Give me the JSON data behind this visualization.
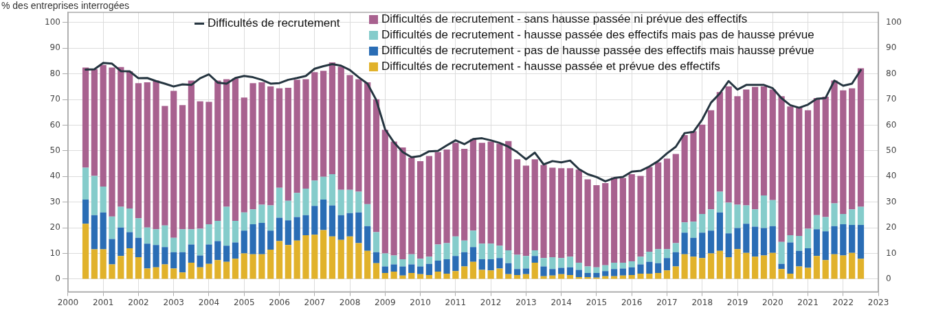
{
  "chart_data": {
    "type": "bar",
    "ylabel": "% des entreprises interrogées",
    "stacked": true,
    "grid": true,
    "legend": "top",
    "marker": "none",
    "line_style": "solid",
    "x": [
      2000.5,
      2000.75,
      2001,
      2001.25,
      2001.5,
      2001.75,
      2002,
      2002.25,
      2002.5,
      2002.75,
      2003,
      2003.25,
      2003.5,
      2003.75,
      2004,
      2004.25,
      2004.5,
      2004.75,
      2005,
      2005.25,
      2005.5,
      2005.75,
      2006,
      2006.25,
      2006.5,
      2006.75,
      2007,
      2007.25,
      2007.5,
      2007.75,
      2008,
      2008.25,
      2008.5,
      2008.75,
      2009,
      2009.25,
      2009.5,
      2009.75,
      2010,
      2010.25,
      2010.5,
      2010.75,
      2011,
      2011.25,
      2011.5,
      2011.75,
      2012,
      2012.25,
      2012.5,
      2012.75,
      2013,
      2013.25,
      2013.5,
      2013.75,
      2014,
      2014.25,
      2014.5,
      2014.75,
      2015,
      2015.25,
      2015.5,
      2015.75,
      2016,
      2016.25,
      2016.5,
      2016.75,
      2017,
      2017.25,
      2017.5,
      2017.75,
      2018,
      2018.25,
      2018.5,
      2018.75,
      2019,
      2019.25,
      2019.5,
      2019.75,
      2020,
      2020.25,
      2020.5,
      2020.75,
      2021,
      2021.25,
      2021.5,
      2021.75,
      2022,
      2022.25,
      2022.5
    ],
    "xlim": [
      2000,
      2023
    ],
    "xticks": [
      2000,
      2001,
      2002,
      2003,
      2004,
      2005,
      2006,
      2007,
      2008,
      2009,
      2010,
      2011,
      2012,
      2013,
      2014,
      2015,
      2016,
      2017,
      2018,
      2019,
      2020,
      2021,
      2022,
      2023
    ],
    "ylim": [
      -5,
      104
    ],
    "yticks": [
      0,
      10,
      20,
      30,
      40,
      50,
      60,
      70,
      80,
      90,
      100
    ],
    "y2lim": [
      -5,
      104
    ],
    "y2ticks": [
      0,
      10,
      20,
      30,
      40,
      50,
      60,
      70,
      80,
      90,
      100
    ],
    "series": [
      {
        "name": "Difficultés de recrutement - hausse passée et prévue des effectifs",
        "color": "#e1b22b",
        "values": [
          21.6,
          11.6,
          11.6,
          5.7,
          9.0,
          12.0,
          8.5,
          4.1,
          4.6,
          5.7,
          4.1,
          2.6,
          6.4,
          4.6,
          5.9,
          7.4,
          6.7,
          7.9,
          10.0,
          9.7,
          9.7,
          11.5,
          14.8,
          13.3,
          15.0,
          17.1,
          17.3,
          19.1,
          16.6,
          15.3,
          16.6,
          14.0,
          11.0,
          6.2,
          2.4,
          2.9,
          1.4,
          2.4,
          1.9,
          1.6,
          2.9,
          2.1,
          3.1,
          4.9,
          6.7,
          3.6,
          3.4,
          4.1,
          1.9,
          1.6,
          1.9,
          6.4,
          1.1,
          1.4,
          1.9,
          1.6,
          0.8,
          0.8,
          0.6,
          1.1,
          1.1,
          1.4,
          1.6,
          2.1,
          2.1,
          2.4,
          3.4,
          4.9,
          9.7,
          8.7,
          8.2,
          10.0,
          11.0,
          8.5,
          11.7,
          10.2,
          8.7,
          9.2,
          10.2,
          3.9,
          2.1,
          4.9,
          4.4,
          9.0,
          7.4,
          9.7,
          9.2,
          10.2,
          7.9
        ]
      },
      {
        "name": "Difficultés de recrutement - pas de hausse passée des effectifs mais hausse prévue",
        "color": "#2a6db5",
        "values": [
          9.4,
          13.3,
          14.4,
          9.9,
          11.1,
          6.3,
          7.6,
          9.7,
          8.7,
          6.8,
          6.4,
          7.9,
          7.1,
          4.6,
          7.6,
          7.4,
          6.3,
          6.4,
          8.9,
          11.7,
          12.2,
          7.4,
          9.1,
          9.6,
          9.2,
          7.8,
          11.2,
          11.9,
          12.1,
          9.6,
          9.1,
          12.0,
          9.6,
          4.3,
          2.5,
          2.8,
          3.5,
          3.3,
          3.0,
          4.3,
          4.3,
          5.6,
          5.9,
          5.6,
          5.8,
          4.1,
          4.3,
          4.1,
          4.3,
          2.3,
          2.2,
          2.6,
          3.8,
          2.5,
          2.5,
          3.0,
          2.8,
          1.6,
          1.8,
          2.0,
          2.8,
          2.7,
          3.0,
          3.6,
          4.6,
          3.8,
          4.8,
          5.6,
          8.4,
          7.4,
          9.9,
          8.9,
          15.0,
          9.3,
          8.2,
          11.4,
          11.7,
          10.7,
          10.4,
          2.0,
          12.2,
          6.1,
          7.6,
          10.4,
          11.2,
          10.9,
          12.2,
          10.9,
          13.2
        ]
      },
      {
        "name": "Difficultés de recrutement - hausse passée des effectifs mais pas de hausse prévue",
        "color": "#85cccb",
        "values": [
          12.4,
          15.3,
          10.1,
          8.8,
          8.1,
          9.2,
          7.6,
          6.3,
          6.1,
          8.4,
          5.6,
          8.9,
          5.9,
          10.4,
          7.9,
          7.9,
          15.2,
          8.4,
          7.1,
          5.8,
          7.1,
          9.8,
          11.7,
          7.6,
          9.4,
          10.4,
          9.9,
          8.9,
          12.2,
          9.9,
          9.1,
          8.1,
          8.6,
          7.8,
          5.1,
          3.5,
          2.8,
          4.0,
          3.0,
          2.8,
          6.3,
          6.3,
          7.6,
          4.5,
          6.4,
          6.1,
          6.1,
          4.8,
          5.0,
          5.6,
          4.9,
          2.2,
          3.3,
          4.6,
          3.8,
          4.1,
          2.8,
          2.5,
          2.2,
          2.3,
          2.5,
          2.3,
          2.3,
          3.0,
          4.0,
          5.5,
          3.5,
          3.5,
          4.0,
          6.3,
          7.3,
          8.3,
          8.1,
          12.0,
          9.1,
          7.1,
          6.8,
          12.7,
          10.2,
          8.6,
          2.8,
          5.8,
          7.6,
          5.5,
          5.6,
          8.9,
          4.0,
          6.1,
          7.1
        ]
      },
      {
        "name": "Difficultés de recrutement - sans hausse passée ni prévue des effectifs",
        "color": "#a8618f",
        "values": [
          39.1,
          41.6,
          47.4,
          58.1,
          54.5,
          53.5,
          52.7,
          56.6,
          58.0,
          46.6,
          57.3,
          48.4,
          58.0,
          49.7,
          47.7,
          54.7,
          49.7,
          55.5,
          44.8,
          49.2,
          47.7,
          46.4,
          38.8,
          44.1,
          44.1,
          42.6,
          42.3,
          41.3,
          43.6,
          48.0,
          44.7,
          43.8,
          47.5,
          51.8,
          48.2,
          44.4,
          43.6,
          37.6,
          38.1,
          39.3,
          36.0,
          36.5,
          36.5,
          35.8,
          35.7,
          39.3,
          39.8,
          39.8,
          42.6,
          37.2,
          35.2,
          35.5,
          36.3,
          34.9,
          35.0,
          34.5,
          36.3,
          34.0,
          32.0,
          32.0,
          33.2,
          33.0,
          34.0,
          31.5,
          33.0,
          33.8,
          35.3,
          34.8,
          34.0,
          35.3,
          34.8,
          38.6,
          38.8,
          45.3,
          42.3,
          45.2,
          47.7,
          42.5,
          43.1,
          56.8,
          50.2,
          50.0,
          46.2,
          45.7,
          46.9,
          47.9,
          48.2,
          47.2,
          54.0
        ]
      },
      {
        "name": "Difficultés de recrutement",
        "type": "line",
        "color": "#253540",
        "values": [
          81.7,
          81.8,
          84.3,
          84.0,
          81.1,
          81.0,
          78.3,
          78.4,
          77.2,
          76.2,
          75.1,
          75.9,
          75.7,
          78.3,
          79.8,
          76.6,
          76.2,
          78.4,
          79.2,
          78.7,
          77.7,
          76.2,
          76.4,
          77.7,
          78.4,
          79.2,
          82.0,
          83.0,
          83.8,
          83.2,
          81.5,
          78.7,
          76.2,
          69.8,
          58.4,
          53.3,
          49.5,
          47.5,
          48.0,
          49.8,
          50.0,
          52.1,
          54.1,
          52.6,
          54.6,
          54.9,
          54.1,
          53.1,
          51.6,
          49.5,
          46.7,
          49.3,
          44.7,
          46.0,
          45.5,
          46.2,
          42.9,
          40.9,
          39.8,
          38.1,
          39.4,
          39.8,
          41.9,
          42.2,
          43.9,
          46.0,
          49.0,
          51.6,
          56.9,
          57.4,
          62.2,
          68.8,
          72.4,
          77.2,
          73.9,
          75.7,
          75.7,
          75.7,
          74.4,
          70.5,
          67.8,
          66.8,
          68.0,
          70.3,
          70.6,
          77.4,
          75.4,
          76.2,
          81.5
        ]
      }
    ]
  }
}
